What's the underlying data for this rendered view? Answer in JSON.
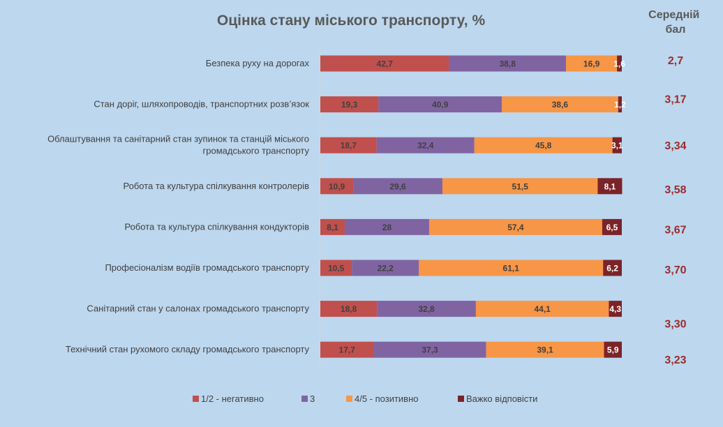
{
  "chart_data": {
    "type": "bar",
    "orientation": "horizontal",
    "stacked": "100%",
    "title": "Оцінка стану міського транспорту, %",
    "avg_header": [
      "Середній",
      "бал"
    ],
    "categories": [
      [
        "Безпека руху на дорогах"
      ],
      [
        "Стан доріг, шляхопроводів, транспортних розв’язок"
      ],
      [
        "Облаштування та санітарний стан зупинок та станцій міського",
        "громадського транспорту"
      ],
      [
        "Робота та культура спілкування контролерів"
      ],
      [
        "Робота та культура спілкування кондукторів"
      ],
      [
        "Професіоналізм водіїв громадського транспорту"
      ],
      [
        "Санітарний стан у салонах громадського транспорту"
      ],
      [
        "Технічний стан рухомого складу   громадського транспорту"
      ]
    ],
    "series": [
      {
        "name": "1/2 - негативно",
        "color": "#c0504d",
        "label_color": "#404040",
        "values": [
          42.7,
          19.3,
          18.7,
          10.9,
          8.1,
          10.5,
          18.8,
          17.7
        ]
      },
      {
        "name": "3",
        "color": "#8064a2",
        "label_color": "#404040",
        "values": [
          38.8,
          40.9,
          32.4,
          29.6,
          28,
          22.2,
          32.8,
          37.3
        ]
      },
      {
        "name": "4/5 - позитивно",
        "color": "#f79646",
        "label_color": "#404040",
        "values": [
          16.9,
          38.6,
          45.8,
          51.5,
          57.4,
          61.1,
          44.1,
          39.1
        ]
      },
      {
        "name": "Важко відповісти",
        "color": "#7b2428",
        "label_color": "#ffffff",
        "values": [
          1.6,
          1.2,
          3.1,
          8.1,
          6.5,
          6.2,
          4.3,
          5.9
        ]
      }
    ],
    "averages": [
      "2,7",
      "3,17",
      "3,34",
      "3,58",
      "3,67",
      "3,70",
      "3,30",
      "3,23"
    ],
    "xlim": [
      0,
      100
    ],
    "grid": false,
    "legend_position": "bottom"
  }
}
